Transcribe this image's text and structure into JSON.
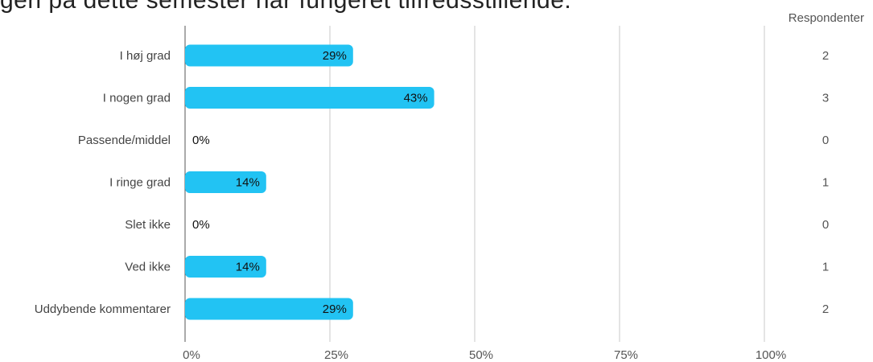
{
  "title": "gen på dette semester har fungeret tilfredsstillende.",
  "respondents_header": "Respondenter",
  "chart_data": {
    "type": "bar",
    "orientation": "horizontal",
    "categories": [
      "I høj grad",
      "I nogen grad",
      "Passende/middel",
      "I ringe grad",
      "Slet ikke",
      "Ved ikke",
      "Uddybende kommentarer"
    ],
    "values": [
      29,
      43,
      0,
      14,
      0,
      14,
      29
    ],
    "value_labels": [
      "29%",
      "43%",
      "0%",
      "14%",
      "0%",
      "14%",
      "29%"
    ],
    "respondents": [
      "2",
      "3",
      "0",
      "1",
      "0",
      "1",
      "2"
    ],
    "x_ticks": [
      "0%",
      "25%",
      "50%",
      "75%",
      "100%"
    ],
    "x_tick_values": [
      0,
      25,
      50,
      75,
      100
    ],
    "xlim": [
      0,
      100
    ],
    "grid": true,
    "bar_color": "#22c3f3",
    "grid_color": "#c8c8c8"
  }
}
